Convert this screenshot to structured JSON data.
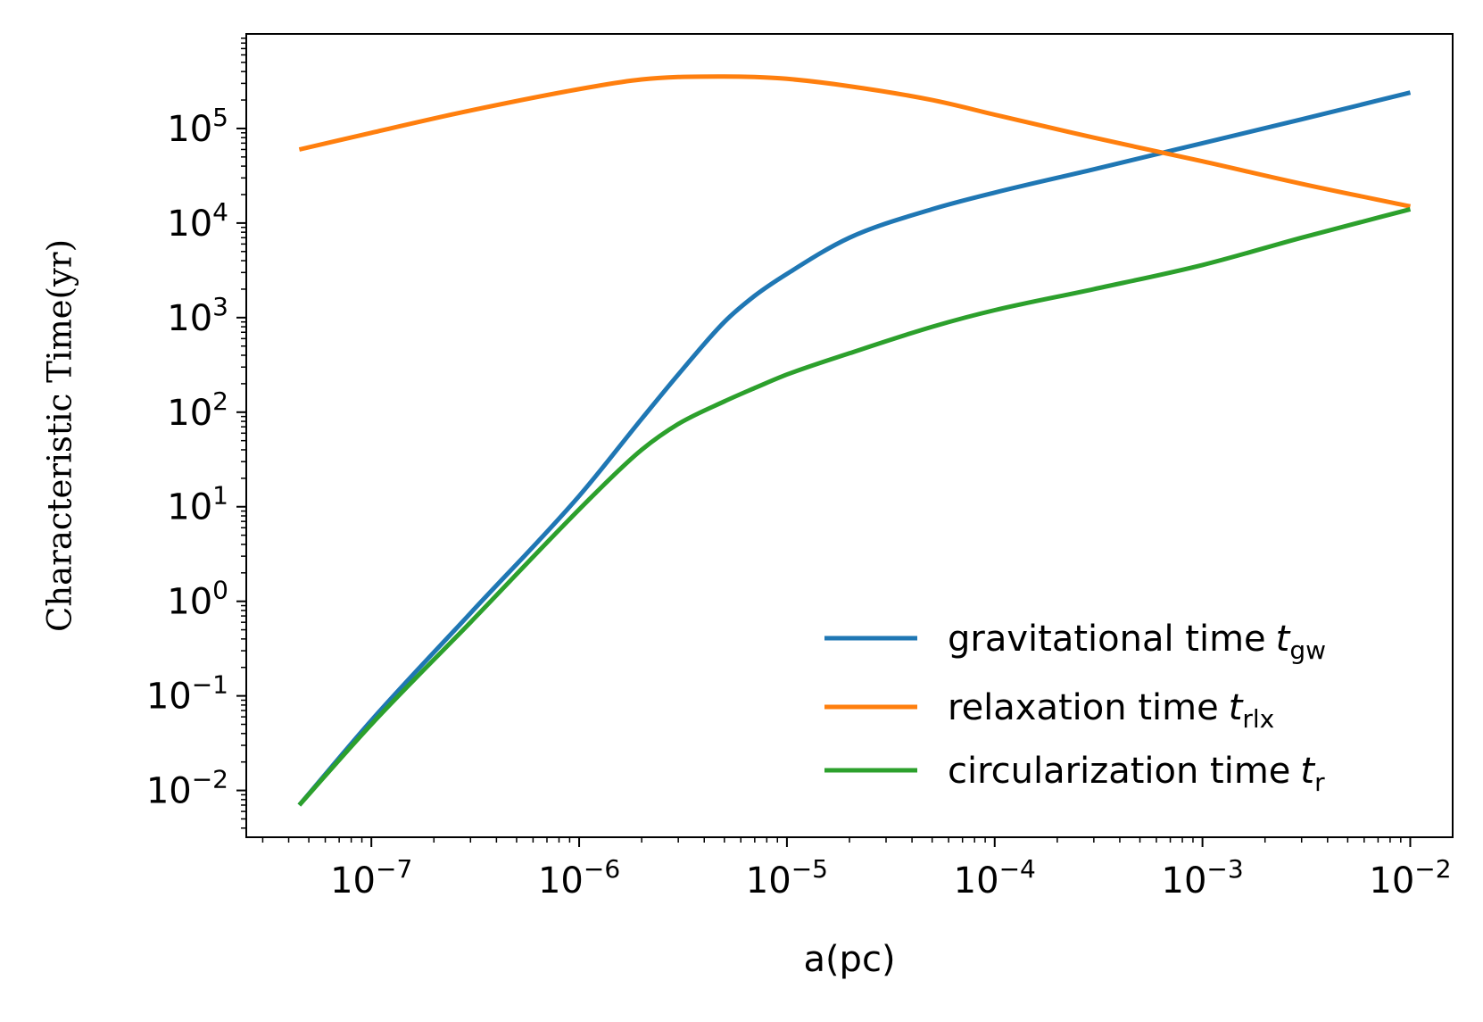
{
  "chart_data": {
    "type": "line",
    "xscale": "log",
    "yscale": "log",
    "xlabel": "a(pc)",
    "ylabel": "Characteristic Time(yr)",
    "xlim": [
      2.5e-08,
      0.016
    ],
    "ylim": [
      0.0032,
      1000000.0
    ],
    "xticks": [
      {
        "base": "10",
        "exp": "−7"
      },
      {
        "base": "10",
        "exp": "−6"
      },
      {
        "base": "10",
        "exp": "−5"
      },
      {
        "base": "10",
        "exp": "−4"
      },
      {
        "base": "10",
        "exp": "−3"
      },
      {
        "base": "10",
        "exp": "−2"
      }
    ],
    "yticks": [
      {
        "base": "10",
        "exp": "−2"
      },
      {
        "base": "10",
        "exp": "−1"
      },
      {
        "base": "10",
        "exp": "0"
      },
      {
        "base": "10",
        "exp": "1"
      },
      {
        "base": "10",
        "exp": "2"
      },
      {
        "base": "10",
        "exp": "3"
      },
      {
        "base": "10",
        "exp": "4"
      },
      {
        "base": "10",
        "exp": "5"
      }
    ],
    "series": [
      {
        "name": "gravitational time",
        "symbol": "t",
        "subscript": "gw",
        "color": "#1f77b4",
        "x": [
          4.5e-08,
          1e-07,
          3e-07,
          1e-06,
          2e-06,
          3e-06,
          5e-06,
          7e-06,
          1e-05,
          2e-05,
          5e-05,
          0.0001,
          0.0003,
          0.001,
          0.003,
          0.01
        ],
        "y": [
          0.007,
          0.055,
          0.75,
          13,
          85,
          250,
          900,
          1700,
          2900,
          7000,
          14000,
          21000,
          37000,
          70000,
          125000,
          240000
        ]
      },
      {
        "name": "relaxation time",
        "symbol": "t",
        "subscript": "rlx",
        "color": "#ff7f0e",
        "x": [
          4.5e-08,
          1e-07,
          3e-07,
          1.2e-06,
          2e-06,
          3e-06,
          5e-06,
          7e-06,
          1e-05,
          2e-05,
          5e-05,
          0.0001,
          0.0003,
          0.001,
          0.003,
          0.01
        ],
        "y": [
          60000,
          90000,
          155000,
          280000,
          330000,
          350000,
          355000,
          350000,
          335000,
          280000,
          200000,
          140000,
          80000,
          45000,
          26000,
          15000
        ]
      },
      {
        "name": "circularization time",
        "symbol": "t",
        "subscript": "r",
        "color": "#2ca02c",
        "x": [
          4.5e-08,
          1e-07,
          3e-07,
          1.2e-06,
          2e-06,
          3e-06,
          5e-06,
          7e-06,
          1e-05,
          2e-05,
          5e-05,
          0.0001,
          0.0003,
          0.001,
          0.003,
          0.01
        ],
        "y": [
          0.007,
          0.05,
          0.6,
          14,
          40,
          75,
          130,
          180,
          250,
          420,
          800,
          1200,
          2000,
          3600,
          7000,
          14000
        ]
      }
    ],
    "legend_position": "bottom-right"
  }
}
